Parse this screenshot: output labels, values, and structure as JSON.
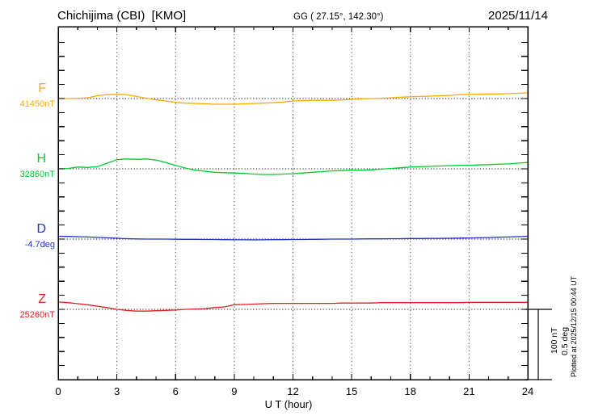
{
  "header": {
    "station": "Chichijima (CBI)  [KMO]",
    "coords": "GG ( 27.15°, 142.30°)",
    "date": "2025/11/14"
  },
  "xaxis": {
    "label": "U T (hour)",
    "ticks": [
      "0",
      "3",
      "6",
      "9",
      "12",
      "15",
      "18",
      "21",
      "24"
    ]
  },
  "scale_bar": {
    "labels": [
      "100 nT",
      "0.5 deg"
    ]
  },
  "footer_note": "Plotted at 2025/12/15 00:44 UT",
  "chart_data": {
    "type": "line",
    "title": "Chichijima (CBI) [KMO] magnetogram 2025/11/14",
    "xlabel": "U T (hour)",
    "x_range_hours": [
      0,
      24
    ],
    "x_gridline_step_hours": 3,
    "x_step_hours": 0.5,
    "y_division": {
      "nT_per_tick": 20,
      "deg_per_tick": 0.1
    },
    "scale_reference": {
      "nT": 100,
      "deg": 0.5
    },
    "series": [
      {
        "name": "F",
        "unit": "nT",
        "color": "#ffaa00",
        "baseline_label": "41450nT",
        "baseline_value": 41450,
        "offsets": [
          0,
          0,
          0.5,
          1,
          4,
          5.5,
          6,
          5.5,
          3,
          0.5,
          -2,
          -3.5,
          -5.5,
          -6.5,
          -7,
          -7.5,
          -8,
          -8,
          -8,
          -7.5,
          -7,
          -6.5,
          -6,
          -5,
          -3.5,
          -3,
          -2.5,
          -2.5,
          -2.5,
          -2,
          -1,
          -0.5,
          0,
          0.5,
          1,
          2,
          2.5,
          3,
          3.5,
          4,
          4.5,
          5.5,
          6,
          6,
          6.5,
          6.5,
          7,
          7.5,
          8
        ]
      },
      {
        "name": "H",
        "unit": "nT",
        "color": "#00cc33",
        "baseline_label": "32860nT",
        "baseline_value": 32860,
        "offsets": [
          0,
          0.5,
          2.5,
          2,
          3,
          8,
          13,
          14,
          13.5,
          14,
          12.5,
          9,
          5,
          1,
          -2,
          -3.5,
          -5,
          -5.5,
          -6,
          -6.5,
          -7.5,
          -8,
          -8,
          -7.5,
          -7,
          -6,
          -5,
          -4,
          -3,
          -2.5,
          -2,
          -2,
          -1.5,
          -0.5,
          0.5,
          1.5,
          2.5,
          3,
          3.5,
          4,
          4.5,
          5,
          5,
          5.5,
          6,
          6.5,
          7,
          8,
          9
        ]
      },
      {
        "name": "D",
        "unit": "deg",
        "color": "#2233cc",
        "baseline_label": "-4.7deg",
        "baseline_value": -4.7,
        "offsets": [
          0.02,
          0.019,
          0.017,
          0.015,
          0.012,
          0.009,
          0.006,
          0.003,
          0.001,
          0,
          0,
          0,
          -0.001,
          -0.002,
          -0.002,
          -0.003,
          -0.003,
          -0.004,
          -0.005,
          -0.005,
          -0.006,
          -0.005,
          -0.004,
          -0.004,
          -0.003,
          -0.003,
          -0.002,
          -0.001,
          0,
          0,
          0,
          0.001,
          0.002,
          0.002,
          0.003,
          0.003,
          0.004,
          0.004,
          0.005,
          0.005,
          0.006,
          0.007,
          0.008,
          0.009,
          0.011,
          0.013,
          0.015,
          0.017,
          0.02
        ]
      },
      {
        "name": "Z",
        "unit": "nT",
        "color": "#e02020",
        "baseline_label": "25260nT",
        "baseline_value": 25260,
        "offsets": [
          10.5,
          9.5,
          8,
          6.5,
          4.5,
          2.5,
          0,
          -1.5,
          -2.5,
          -2.5,
          -2,
          -1.5,
          -1,
          0,
          0.5,
          1,
          2.5,
          3.5,
          6.5,
          7,
          7.5,
          8,
          8.5,
          8.5,
          8.5,
          8.5,
          8.5,
          8.5,
          8.5,
          9,
          9,
          9,
          9,
          9.5,
          9.5,
          9.5,
          9.5,
          9.5,
          9.5,
          9.5,
          9.5,
          9.5,
          10,
          10,
          10,
          10,
          10,
          10,
          10
        ]
      }
    ]
  }
}
